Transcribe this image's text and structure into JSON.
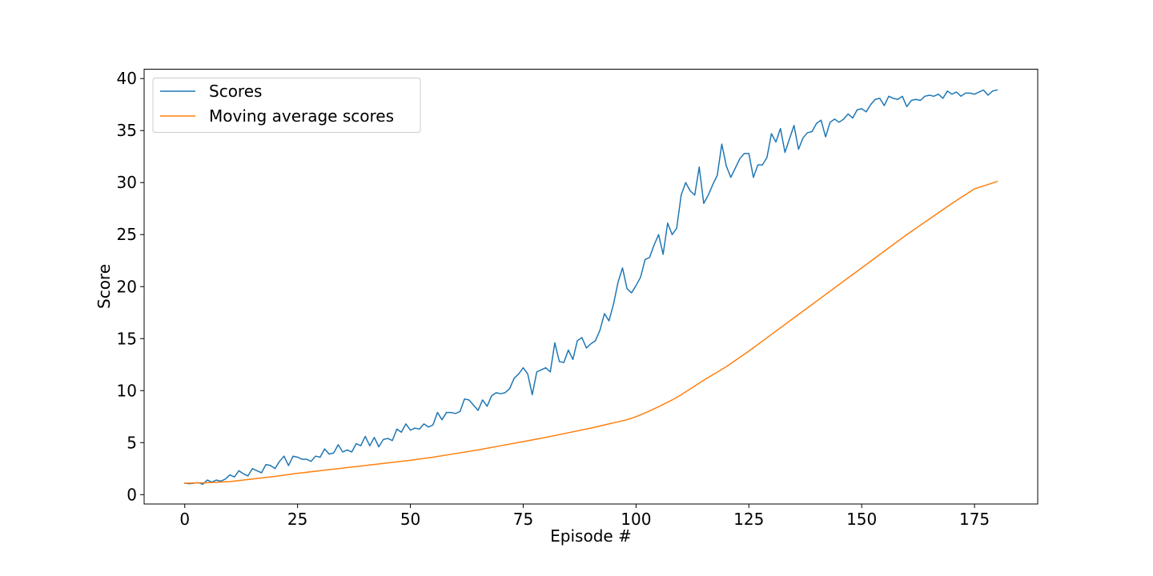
{
  "chart_data": {
    "type": "line",
    "title": "",
    "xlabel": "Episode #",
    "ylabel": "Score",
    "xlim": [
      -9,
      189
    ],
    "ylim": [
      -0.9,
      40.9
    ],
    "x_ticks": [
      0,
      25,
      50,
      75,
      100,
      125,
      150,
      175
    ],
    "y_ticks": [
      0,
      5,
      10,
      15,
      20,
      25,
      30,
      35,
      40
    ],
    "grid": false,
    "legend_position": "upper-left",
    "colors": {
      "scores": "#1f77b4",
      "moving_average": "#ff7f0e"
    },
    "series": [
      {
        "name": "Scores",
        "color": "#1f77b4",
        "x": [
          0,
          1,
          2,
          3,
          4,
          5,
          6,
          7,
          8,
          9,
          10,
          11,
          12,
          13,
          14,
          15,
          16,
          17,
          18,
          19,
          20,
          21,
          22,
          23,
          24,
          25,
          26,
          27,
          28,
          29,
          30,
          31,
          32,
          33,
          34,
          35,
          36,
          37,
          38,
          39,
          40,
          41,
          42,
          43,
          44,
          45,
          46,
          47,
          48,
          49,
          50,
          51,
          52,
          53,
          54,
          55,
          56,
          57,
          58,
          59,
          60,
          61,
          62,
          63,
          64,
          65,
          66,
          67,
          68,
          69,
          70,
          71,
          72,
          73,
          74,
          75,
          76,
          77,
          78,
          79,
          80,
          81,
          82,
          83,
          84,
          85,
          86,
          87,
          88,
          89,
          90,
          91,
          92,
          93,
          94,
          95,
          96,
          97,
          98,
          99,
          100,
          101,
          102,
          103,
          104,
          105,
          106,
          107,
          108,
          109,
          110,
          111,
          112,
          113,
          114,
          115,
          116,
          117,
          118,
          119,
          120,
          121,
          122,
          123,
          124,
          125,
          126,
          127,
          128,
          129,
          130,
          131,
          132,
          133,
          134,
          135,
          136,
          137,
          138,
          139,
          140,
          141,
          142,
          143,
          144,
          145,
          146,
          147,
          148,
          149,
          150,
          151,
          152,
          153,
          154,
          155,
          156,
          157,
          158,
          159,
          160,
          161,
          162,
          163,
          164,
          165,
          166,
          167,
          168,
          169,
          170,
          171,
          172,
          173,
          174,
          175,
          176,
          177,
          178,
          179,
          180
        ],
        "y": [
          1.1,
          1.05,
          1.1,
          1.15,
          1.0,
          1.4,
          1.2,
          1.4,
          1.3,
          1.5,
          1.9,
          1.7,
          2.3,
          2.0,
          1.8,
          2.5,
          2.3,
          2.1,
          2.9,
          2.8,
          2.5,
          3.2,
          3.7,
          2.8,
          3.7,
          3.6,
          3.4,
          3.4,
          3.2,
          3.7,
          3.6,
          4.4,
          3.9,
          4.0,
          4.8,
          4.1,
          4.3,
          4.1,
          4.9,
          4.7,
          5.6,
          4.7,
          5.5,
          4.6,
          5.3,
          5.4,
          5.2,
          6.3,
          6.0,
          6.8,
          6.2,
          6.4,
          6.3,
          6.8,
          6.5,
          6.7,
          7.9,
          7.2,
          7.9,
          7.9,
          7.8,
          8.0,
          9.2,
          9.1,
          8.6,
          8.1,
          9.1,
          8.5,
          9.5,
          9.8,
          9.7,
          9.8,
          10.2,
          11.2,
          11.6,
          12.2,
          11.6,
          9.6,
          11.8,
          12.0,
          12.2,
          11.8,
          14.6,
          12.8,
          12.7,
          13.9,
          13.0,
          14.8,
          15.1,
          14.1,
          14.5,
          14.8,
          15.8,
          17.4,
          16.7,
          18.3,
          20.4,
          21.8,
          19.8,
          19.4,
          20.1,
          20.9,
          22.6,
          22.8,
          24.0,
          25.0,
          23.1,
          26.1,
          25.0,
          25.6,
          28.8,
          30.0,
          29.2,
          28.8,
          31.5,
          28.0,
          28.8,
          29.8,
          30.7,
          33.7,
          31.6,
          30.5,
          31.4,
          32.3,
          32.8,
          32.8,
          30.5,
          31.7,
          31.7,
          32.4,
          34.7,
          33.9,
          35.2,
          32.9,
          34.2,
          35.5,
          33.2,
          34.3,
          34.8,
          34.9,
          35.7,
          36.0,
          34.4,
          35.8,
          36.1,
          35.8,
          36.1,
          36.6,
          36.2,
          37.0,
          37.1,
          36.8,
          37.5,
          38.0,
          38.1,
          37.4,
          38.3,
          38.1,
          38.0,
          38.3,
          37.3,
          37.9,
          38.0,
          37.9,
          38.3,
          38.4,
          38.3,
          38.5,
          38.1,
          38.8,
          38.5,
          38.7,
          38.3,
          38.6,
          38.6,
          38.5,
          38.7,
          38.9,
          38.4,
          38.8,
          38.9
        ]
      },
      {
        "name": "Moving average scores",
        "color": "#ff7f0e",
        "x": [
          0,
          5,
          10,
          15,
          20,
          25,
          30,
          35,
          40,
          45,
          50,
          55,
          60,
          65,
          70,
          75,
          80,
          85,
          90,
          95,
          98,
          100,
          102,
          105,
          108,
          110,
          115,
          120,
          125,
          130,
          135,
          140,
          145,
          150,
          155,
          160,
          165,
          170,
          175,
          180
        ],
        "y": [
          1.1,
          1.15,
          1.25,
          1.5,
          1.75,
          2.05,
          2.3,
          2.55,
          2.8,
          3.05,
          3.3,
          3.6,
          3.95,
          4.3,
          4.7,
          5.1,
          5.5,
          5.95,
          6.4,
          6.9,
          7.2,
          7.5,
          7.85,
          8.45,
          9.1,
          9.6,
          11.0,
          12.3,
          13.8,
          15.4,
          17.0,
          18.6,
          20.2,
          21.8,
          23.4,
          25.0,
          26.5,
          28.0,
          29.4,
          30.1
        ]
      }
    ]
  }
}
